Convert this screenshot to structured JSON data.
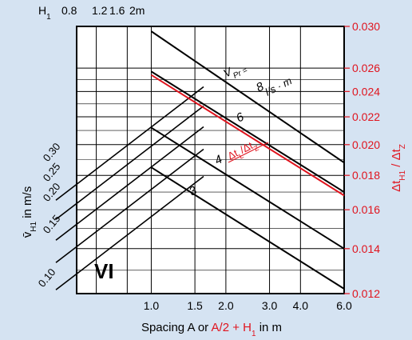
{
  "chart_data": {
    "type": "line",
    "colors": {
      "background": "#d5e3f2",
      "grid": "#000000",
      "red": "#e0141e",
      "ink": "#000000"
    },
    "top_axis": {
      "label_main": "H",
      "label_sub": "1",
      "ticks": [
        {
          "label": "0.8",
          "value": 0.8
        },
        {
          "label": "1.2",
          "value": 1.2
        },
        {
          "label": "1.6",
          "value": 1.6
        },
        {
          "label": "2m",
          "value": 2.0
        }
      ]
    },
    "bottom_axis": {
      "scale": "log",
      "range": [
        0.5,
        6.0
      ],
      "ticks": [
        {
          "label": "1.0",
          "value": 1.0
        },
        {
          "label": "1.5",
          "value": 1.5
        },
        {
          "label": "2.0",
          "value": 2.0
        },
        {
          "label": "3.0",
          "value": 3.0
        },
        {
          "label": "4.0",
          "value": 4.0
        },
        {
          "label": "6.0",
          "value": 6.0
        }
      ],
      "gridlines": [
        0.5,
        0.6,
        0.8,
        1.0,
        1.5,
        2.0,
        3.0,
        4.0,
        6.0
      ],
      "xlabel_a": "Spacing A or ",
      "xlabel_red_a": "A/2 + H",
      "xlabel_red_sub": "1",
      "xlabel_b": " in m"
    },
    "right_axis": {
      "scale": "log",
      "range": [
        0.012,
        0.03
      ],
      "ticks": [
        "0.030",
        "0.026",
        "0.024",
        "0.022",
        "0.020",
        "0.018",
        "0.016",
        "0.014",
        "0.012"
      ],
      "tick_values": [
        0.03,
        0.026,
        0.024,
        0.022,
        0.02,
        0.018,
        0.016,
        0.014,
        0.012
      ],
      "label_a": "Δt",
      "label_a_sub": "H1",
      "label_sep": " / Δt",
      "label_b_sub": "Z"
    },
    "left_axis": {
      "label_main": "v̄",
      "label_sub": "H1",
      "label_rest": " in m/s",
      "ticks": [
        {
          "label": "0.30",
          "value": 0.3
        },
        {
          "label": "0.25",
          "value": 0.25
        },
        {
          "label": "0.20",
          "value": 0.2
        },
        {
          "label": "0.15",
          "value": 0.15
        },
        {
          "label": "0.10",
          "value": 0.1
        }
      ]
    },
    "series": [
      {
        "label": "8",
        "x": [
          1.0,
          6.0
        ],
        "y": [
          0.0295,
          0.0188
        ]
      },
      {
        "label": "6",
        "x": [
          1.0,
          6.0
        ],
        "y": [
          0.0257,
          0.017
        ]
      },
      {
        "label": "4",
        "x": [
          1.0,
          6.0
        ],
        "y": [
          0.0212,
          0.014
        ]
      },
      {
        "label": "3",
        "x": [
          1.0,
          6.0
        ],
        "y": [
          0.0185,
          0.0122
        ]
      }
    ],
    "red_line": {
      "x": [
        1.0,
        6.0
      ],
      "y": [
        0.0254,
        0.0168
      ]
    },
    "annotations": {
      "vpr_main": "V",
      "vpr_sub": "Pr =",
      "vpr_unit": "l/s · m",
      "dt_a": "Δt",
      "dt_a_sub": "L",
      "dt_sep": "/Δt",
      "dt_b_sub": "Z",
      "region": "VI"
    }
  }
}
